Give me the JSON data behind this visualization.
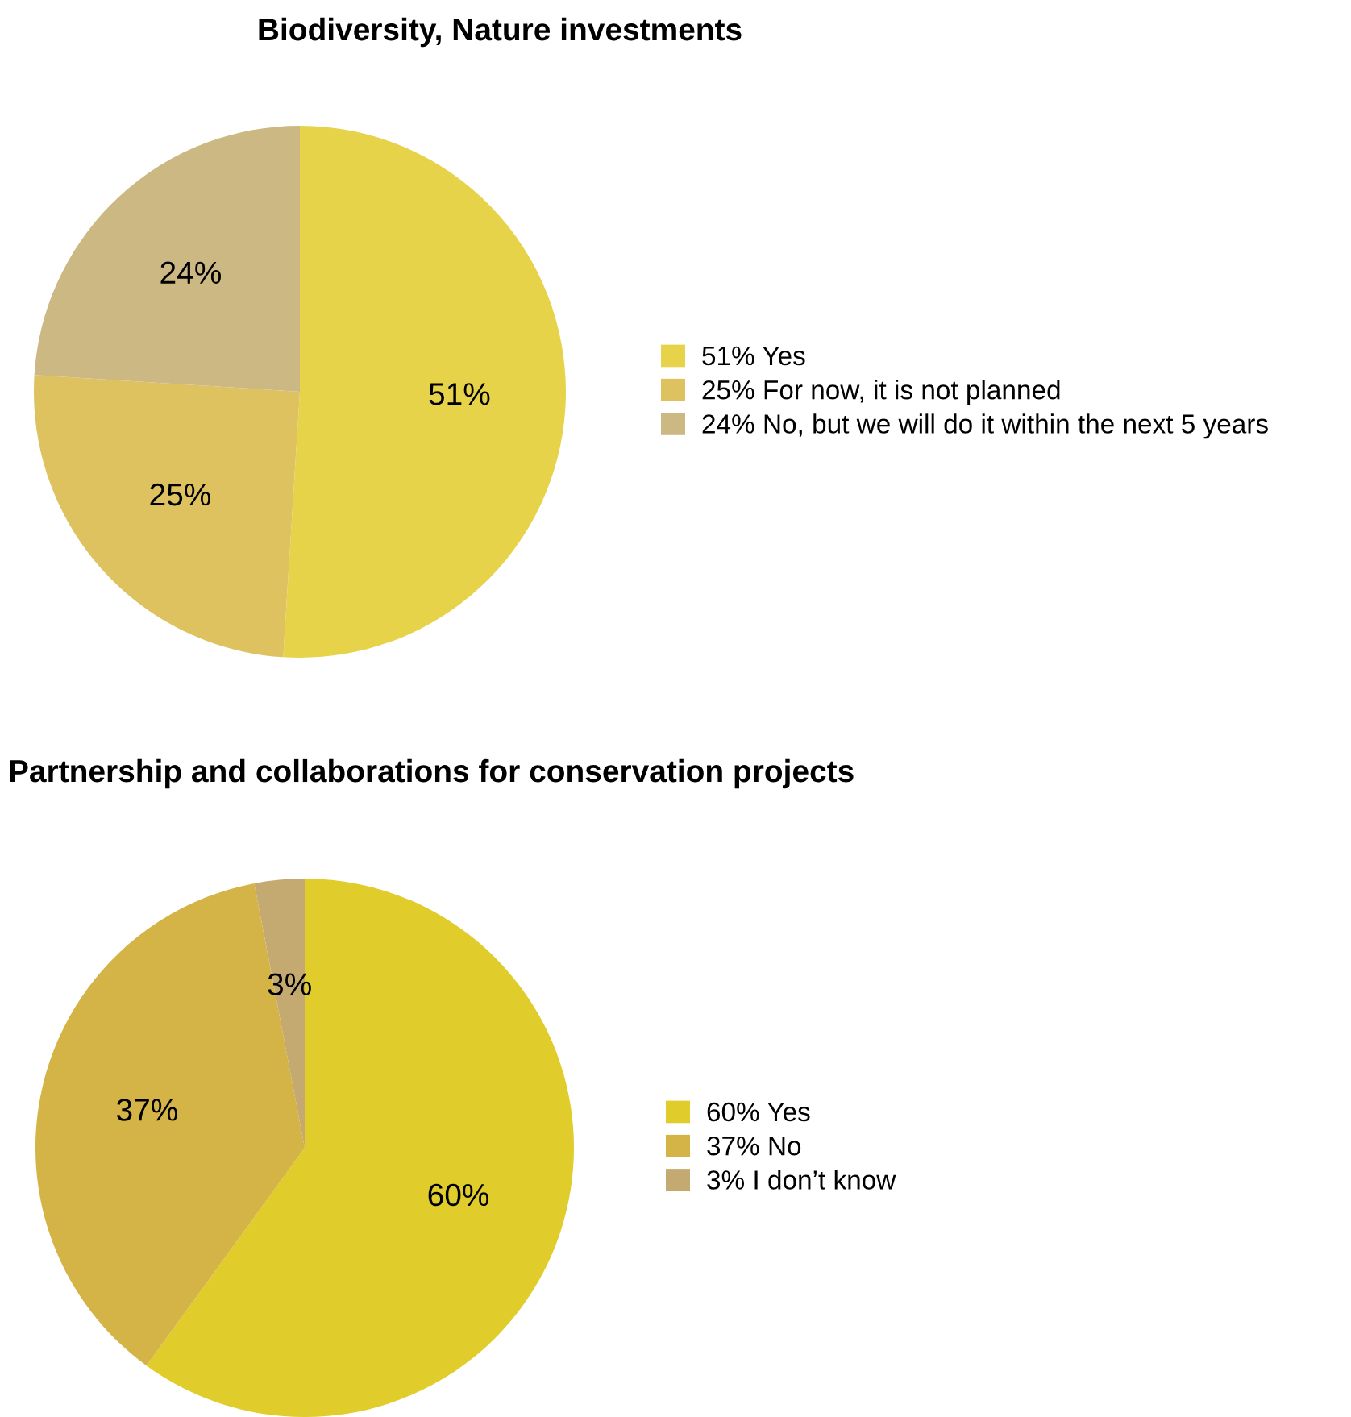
{
  "chart_data": [
    {
      "type": "pie",
      "title": "Biodiversity, Nature investments",
      "categories": [
        "51% Yes",
        "25% For now, it is not planned",
        "24% No, but we will do it within the next 5 years"
      ],
      "values": [
        51,
        25,
        24
      ],
      "colors": [
        "#e6d349",
        "#dec25f",
        "#ccb882"
      ],
      "value_labels": [
        "51%",
        "25%",
        "24%"
      ],
      "legend": "right"
    },
    {
      "type": "pie",
      "title": "Partnership and collaborations for conservation projects",
      "categories": [
        "60% Yes",
        "37% No",
        "3% I don’t know"
      ],
      "values": [
        60,
        37,
        3
      ],
      "colors": [
        "#e0cc2a",
        "#d4b347",
        "#c4aa70"
      ],
      "value_labels": [
        "60%",
        "37%",
        "3%"
      ],
      "legend": "right"
    }
  ]
}
